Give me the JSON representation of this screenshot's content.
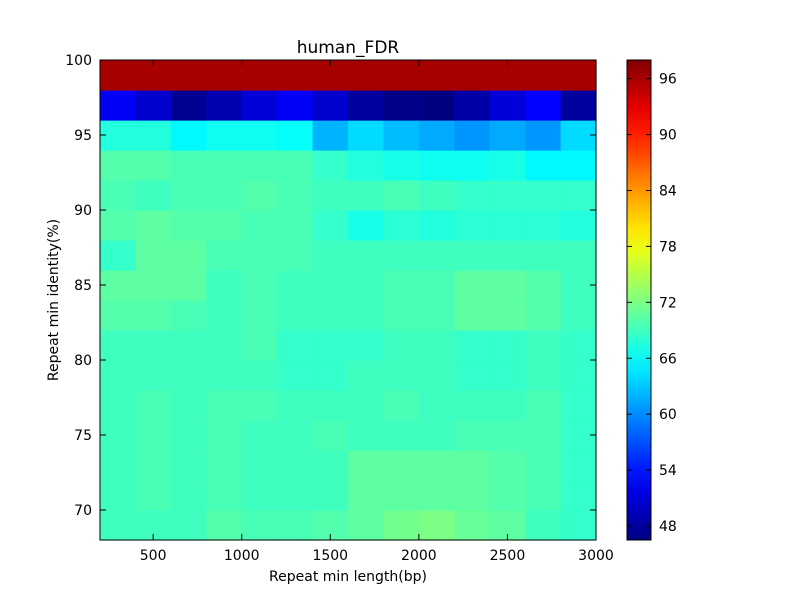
{
  "chart_data": {
    "type": "heatmap",
    "title": "human_FDR",
    "xlabel": "Repeat min length(bp)",
    "ylabel": "Repeat min identity(%)",
    "x_categories": [
      300,
      500,
      700,
      900,
      1100,
      1300,
      1500,
      1700,
      1900,
      2100,
      2300,
      2500,
      2700,
      2900
    ],
    "y_categories": [
      69,
      71,
      73,
      75,
      77,
      79,
      81,
      83,
      85,
      87,
      89,
      91,
      93,
      95,
      97,
      99
    ],
    "xlim": [
      200,
      3000
    ],
    "ylim": [
      68,
      100
    ],
    "xticks": [
      "500",
      "1000",
      "1500",
      "2000",
      "2500",
      "3000"
    ],
    "yticks": [
      "70",
      "75",
      "80",
      "85",
      "90",
      "95",
      "100"
    ],
    "colorbar": {
      "colormap": "jet",
      "min": 46.5,
      "max": 98,
      "ticks": [
        "48",
        "54",
        "60",
        "66",
        "72",
        "78",
        "84",
        "90",
        "96"
      ]
    },
    "values": [
      [
        69.0,
        69.0,
        69.0,
        70.0,
        69.5,
        69.5,
        70.0,
        70.5,
        71.5,
        72.0,
        71.0,
        70.5,
        69.0,
        68.5
      ],
      [
        69.0,
        69.5,
        69.0,
        69.5,
        69.0,
        69.0,
        69.0,
        70.5,
        70.5,
        70.5,
        70.5,
        70.0,
        69.5,
        68.5
      ],
      [
        69.0,
        69.5,
        69.0,
        69.5,
        69.0,
        69.0,
        69.0,
        70.5,
        70.5,
        70.5,
        70.5,
        70.0,
        69.5,
        68.5
      ],
      [
        69.0,
        69.5,
        69.0,
        69.5,
        69.0,
        69.0,
        69.5,
        69.0,
        69.0,
        69.0,
        69.5,
        69.5,
        69.5,
        68.5
      ],
      [
        69.0,
        69.5,
        69.0,
        69.5,
        69.5,
        69.0,
        69.0,
        69.0,
        69.5,
        69.0,
        69.0,
        69.0,
        69.5,
        68.5
      ],
      [
        69.0,
        69.0,
        69.0,
        69.0,
        69.0,
        68.5,
        68.5,
        69.0,
        69.0,
        69.0,
        68.5,
        68.5,
        69.0,
        68.5
      ],
      [
        69.0,
        69.0,
        69.0,
        69.0,
        69.5,
        68.5,
        68.5,
        68.5,
        69.0,
        69.0,
        68.5,
        68.5,
        69.0,
        68.5
      ],
      [
        70.0,
        70.0,
        69.5,
        69.0,
        69.5,
        69.0,
        69.0,
        69.0,
        69.5,
        69.5,
        70.5,
        70.5,
        70.0,
        69.0
      ],
      [
        70.5,
        70.5,
        70.5,
        69.0,
        69.5,
        69.0,
        69.0,
        69.0,
        69.5,
        69.5,
        70.5,
        70.5,
        70.0,
        69.0
      ],
      [
        68.5,
        70.5,
        70.5,
        69.5,
        69.5,
        69.5,
        69.0,
        69.0,
        69.0,
        69.0,
        69.0,
        69.0,
        69.0,
        69.0
      ],
      [
        70.0,
        70.5,
        70.0,
        70.0,
        69.5,
        69.5,
        68.5,
        67.0,
        68.0,
        67.5,
        68.0,
        68.0,
        68.0,
        67.5
      ],
      [
        69.5,
        69.0,
        69.5,
        69.5,
        70.0,
        69.5,
        69.0,
        69.0,
        69.5,
        69.0,
        68.5,
        68.5,
        68.5,
        68.5
      ],
      [
        70.0,
        70.0,
        69.5,
        69.5,
        69.5,
        69.5,
        68.5,
        67.5,
        67.0,
        66.5,
        66.5,
        67.0,
        65.5,
        65.5
      ],
      [
        67.5,
        67.5,
        65.5,
        66.5,
        66.5,
        66.0,
        62.0,
        64.0,
        62.5,
        61.5,
        60.5,
        61.5,
        60.5,
        64.0
      ],
      [
        52.5,
        50.5,
        47.5,
        49.0,
        51.0,
        52.5,
        50.5,
        48.0,
        47.0,
        46.5,
        48.5,
        51.0,
        53.0,
        48.0
      ],
      [
        96.0,
        96.0,
        96.0,
        96.0,
        96.0,
        96.0,
        96.0,
        96.0,
        96.0,
        96.0,
        96.0,
        96.0,
        96.0,
        96.0
      ]
    ]
  }
}
